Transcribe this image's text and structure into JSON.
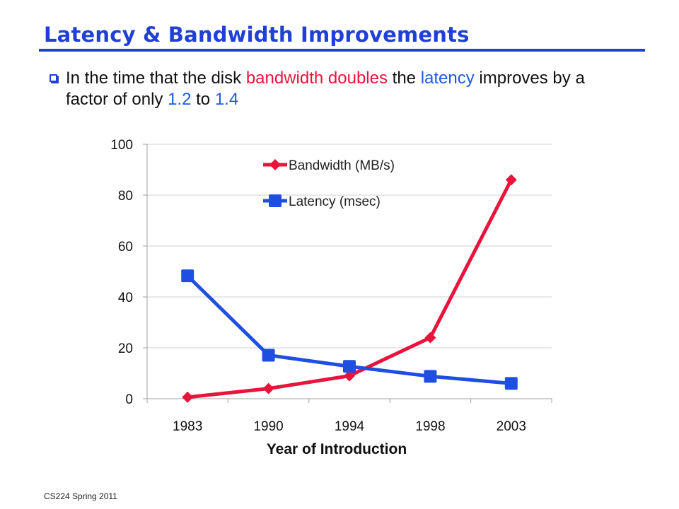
{
  "slide": {
    "title": "Latency & Bandwidth Improvements",
    "bullet": {
      "part1": "In the time that the disk ",
      "bandwidth_word": "bandwidth",
      "part2": " ",
      "doubles_word": "doubles",
      "part3": " the ",
      "latency_word": "latency",
      "part4": " improves by a factor of only ",
      "low_factor": "1.2",
      "part5": " to ",
      "high_factor": "1.4"
    },
    "footer": "CS224 Spring 2011"
  },
  "colors": {
    "title": "#1f3fd8",
    "bandwidth": "#e8143c",
    "latency": "#1f4fe0"
  },
  "chart_data": {
    "type": "line",
    "categories": [
      "1983",
      "1990",
      "1994",
      "1998",
      "2003"
    ],
    "series": [
      {
        "name": "Bandwidth (MB/s)",
        "marker": "diamond",
        "color": "#e8143c",
        "values": [
          0.6,
          4,
          9,
          24,
          86
        ]
      },
      {
        "name": "Latency (msec)",
        "marker": "square",
        "color": "#1f4fe0",
        "values": [
          48.3,
          17.1,
          12.7,
          8.8,
          6
        ]
      }
    ],
    "xlabel": "Year of Introduction",
    "ylabel": "",
    "ylim": [
      0,
      100
    ],
    "yticks": [
      0,
      20,
      40,
      60,
      80,
      100
    ],
    "grid": true,
    "legend": "top-center-inside"
  }
}
